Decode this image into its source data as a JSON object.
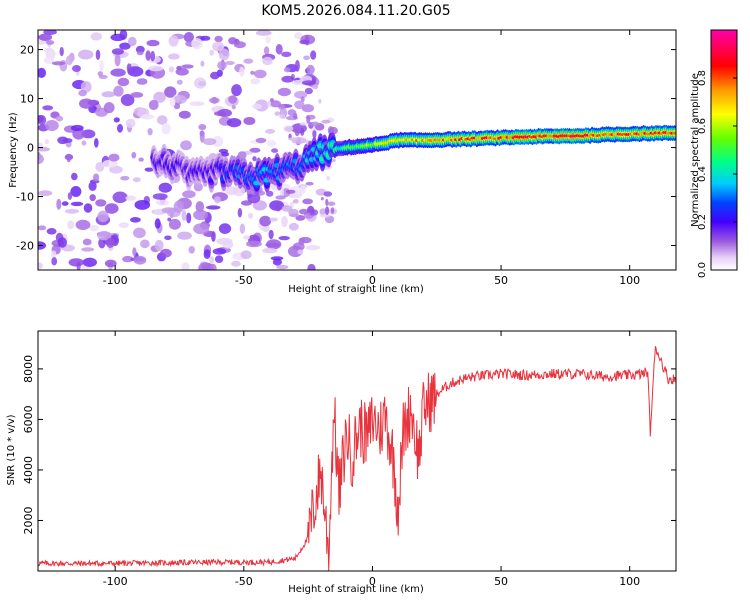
{
  "title": "KOM5.2026.084.11.20.G05",
  "chart_data": [
    {
      "type": "heatmap",
      "title": "KOM5.2026.084.11.20.G05",
      "xlabel": "Height of straight line (km)",
      "ylabel": "Frequency (Hz)",
      "xlim": [
        -130,
        118
      ],
      "ylim": [
        -25,
        24
      ],
      "xticks": [
        -100,
        -50,
        0,
        50,
        100
      ],
      "yticks": [
        -20,
        -10,
        0,
        10,
        20
      ],
      "colorbar": {
        "label": "Normalized spectral amplitude",
        "range": [
          0,
          1
        ],
        "ticks": [
          0.0,
          0.2,
          0.4,
          0.6,
          0.8
        ],
        "colormap": [
          "#ffffff",
          "#d8b4f0",
          "#9b59e0",
          "#4400ff",
          "#0044ff",
          "#00ccff",
          "#00ff88",
          "#66ff00",
          "#ffff00",
          "#ff9900",
          "#ff0000",
          "#ff0099",
          "#ff00aa"
        ]
      },
      "ridge": {
        "description_points": [
          {
            "x": -80,
            "y": -3
          },
          {
            "x": -70,
            "y": -6
          },
          {
            "x": -60,
            "y": -5
          },
          {
            "x": -45,
            "y": -6
          },
          {
            "x": -30,
            "y": -4
          },
          {
            "x": -20,
            "y": -1
          },
          {
            "x": -10,
            "y": 0
          },
          {
            "x": 0,
            "y": 0.5
          },
          {
            "x": 10,
            "y": 1.5
          },
          {
            "x": 20,
            "y": 1.5
          },
          {
            "x": 40,
            "y": 1.8
          },
          {
            "x": 60,
            "y": 2.2
          },
          {
            "x": 80,
            "y": 2.4
          },
          {
            "x": 100,
            "y": 2.8
          },
          {
            "x": 118,
            "y": 3.0
          }
        ],
        "amplitude": [
          {
            "x": -60,
            "a": 0.25
          },
          {
            "x": -45,
            "a": 0.35
          },
          {
            "x": -30,
            "a": 0.3
          },
          {
            "x": -15,
            "a": 0.45
          },
          {
            "x": 0,
            "a": 0.6
          },
          {
            "x": 10,
            "a": 0.7
          },
          {
            "x": 20,
            "a": 0.75
          },
          {
            "x": 40,
            "a": 0.8
          },
          {
            "x": 60,
            "a": 0.85
          },
          {
            "x": 80,
            "a": 0.88
          },
          {
            "x": 100,
            "a": 0.82
          },
          {
            "x": 118,
            "a": 0.8
          }
        ]
      }
    },
    {
      "type": "line",
      "xlabel": "Height of straight line (km)",
      "ylabel": "SNR (10 * v/v)",
      "xlim": [
        -130,
        118
      ],
      "ylim": [
        0,
        9500
      ],
      "xticks": [
        -100,
        -50,
        0,
        50,
        100
      ],
      "yticks": [
        2000,
        4000,
        6000,
        8000
      ],
      "series": [
        {
          "name": "SNR",
          "color": "#e8323c",
          "x": [
            -130,
            -100,
            -60,
            -40,
            -30,
            -25,
            -20,
            -17,
            -15,
            -13,
            -10,
            -8,
            -5,
            -2,
            0,
            3,
            5,
            8,
            10,
            12,
            15,
            18,
            20,
            23,
            25,
            30,
            35,
            40,
            50,
            60,
            70,
            80,
            90,
            100,
            105,
            107,
            108,
            110,
            115,
            118
          ],
          "y": [
            300,
            300,
            350,
            350,
            500,
            1300,
            4000,
            700,
            6500,
            3000,
            5500,
            4500,
            5800,
            5200,
            6000,
            5600,
            6200,
            4500,
            2500,
            5500,
            6500,
            4500,
            6500,
            6800,
            7000,
            7400,
            7600,
            7700,
            7800,
            7750,
            7800,
            7800,
            7700,
            7750,
            7800,
            7900,
            5500,
            8900,
            7600,
            7600
          ]
        }
      ]
    }
  ]
}
